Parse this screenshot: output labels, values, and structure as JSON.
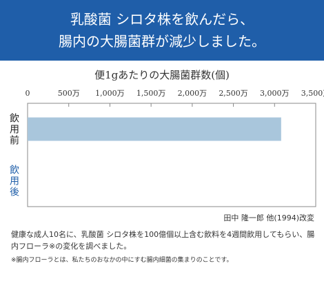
{
  "header": {
    "line1": "乳酸菌 シロタ株を飲んだら、",
    "line2": "腸内の大腸菌群が減少しました。"
  },
  "chart_data": {
    "type": "bar",
    "orientation": "horizontal",
    "title": "便1gあたりの大腸菌群数(個)",
    "categories": [
      "飲用前",
      "飲用後"
    ],
    "values": [
      30800000,
      0
    ],
    "xlim": [
      0,
      35000000
    ],
    "ticks": [
      0,
      5000000,
      10000000,
      15000000,
      20000000,
      25000000,
      30000000,
      35000000
    ],
    "tick_labels": [
      "0",
      "500万",
      "1,000万",
      "1,500万",
      "2,000万",
      "2,500万",
      "3,000万",
      "3,500万"
    ],
    "category_colors": [
      "#222222",
      "#1f5ea9"
    ],
    "bar_color": "#a9c6dc",
    "grid": false
  },
  "source": "田中 隆一郎 他(1994)改変",
  "note": "健康な成人10名に、乳酸菌 シロタ株を100億個以上含む飲料を4週間飲用してもらい、腸内フローラ※の変化を調べました。",
  "footnote": "※腸内フローラとは、私たちのおなかの中にすむ腸内細菌の集まりのことです。"
}
